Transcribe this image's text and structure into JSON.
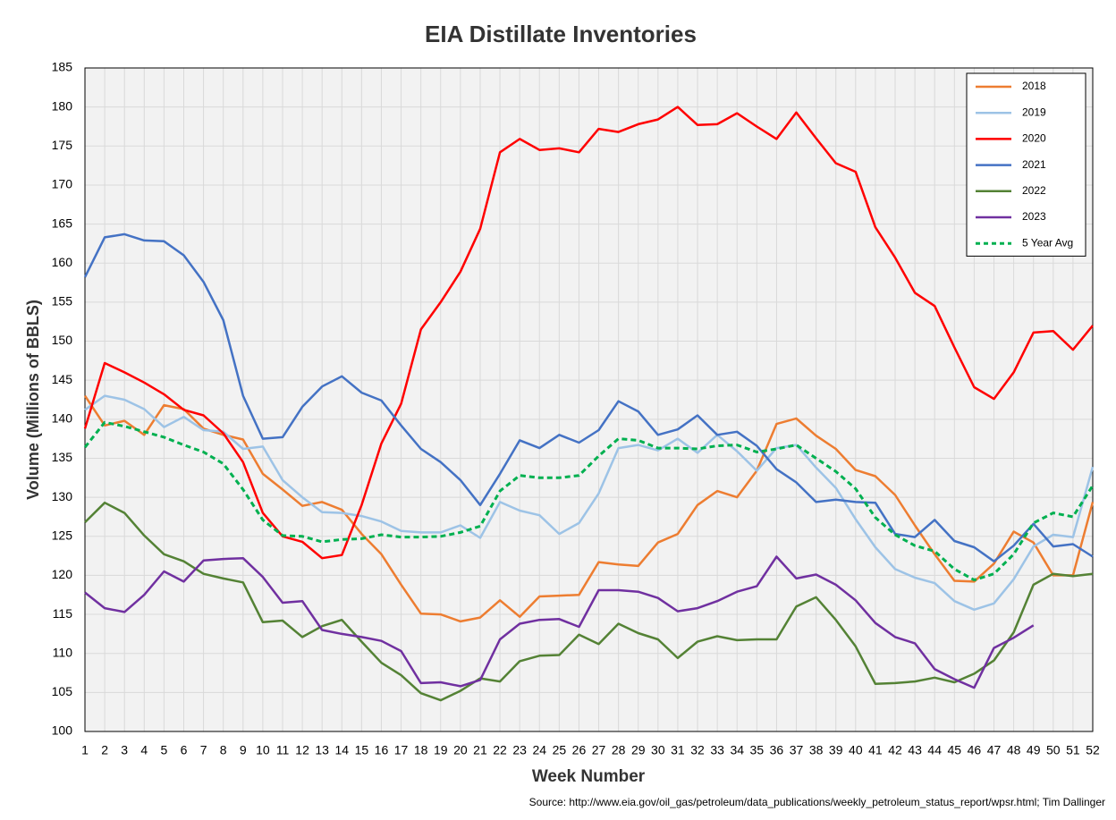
{
  "chart_data": {
    "type": "line",
    "title": "EIA Distillate Inventories",
    "x_label": "Week Number",
    "y_label": "Volume (Millions of BBLS)",
    "source": "Source: http://www.eia.gov/oil_gas/petroleum/data_publications/weekly_petroleum_status_report/wpsr.html; Tim Dallinger",
    "x": [
      1,
      2,
      3,
      4,
      5,
      6,
      7,
      8,
      9,
      10,
      11,
      12,
      13,
      14,
      15,
      16,
      17,
      18,
      19,
      20,
      21,
      22,
      23,
      24,
      25,
      26,
      27,
      28,
      29,
      30,
      31,
      32,
      33,
      34,
      35,
      36,
      37,
      38,
      39,
      40,
      41,
      42,
      43,
      44,
      45,
      46,
      47,
      48,
      49,
      50,
      51,
      52
    ],
    "xlim": [
      1,
      52
    ],
    "xticks": [
      1,
      2,
      3,
      4,
      5,
      6,
      7,
      8,
      9,
      10,
      11,
      12,
      13,
      14,
      15,
      16,
      17,
      18,
      19,
      20,
      21,
      22,
      23,
      24,
      25,
      26,
      27,
      28,
      29,
      30,
      31,
      32,
      33,
      34,
      35,
      36,
      37,
      38,
      39,
      40,
      41,
      42,
      43,
      44,
      45,
      46,
      47,
      48,
      49,
      50,
      51,
      52
    ],
    "ylim": [
      100,
      185
    ],
    "yticks": [
      100,
      105,
      110,
      115,
      120,
      125,
      130,
      135,
      140,
      145,
      150,
      155,
      160,
      165,
      170,
      175,
      180,
      185
    ],
    "grid": true,
    "legend": "top-right",
    "series": [
      {
        "name": "2018",
        "color": "#ed7d31",
        "values": [
          143,
          139.2,
          139.8,
          138,
          141.8,
          141.3,
          138.8,
          138,
          137.4,
          133,
          131,
          128.9,
          129.4,
          128.4,
          125.3,
          122.7,
          118.8,
          115.1,
          115,
          114.1,
          114.6,
          116.8,
          114.7,
          117.3,
          117.4,
          117.5,
          121.7,
          121.4,
          121.2,
          124.2,
          125.3,
          129,
          130.8,
          130,
          133.4,
          139.4,
          140.1,
          137.9,
          136.2,
          133.5,
          132.7,
          130.3,
          126.4,
          122.7,
          119.3,
          119.2,
          121.5,
          125.6,
          124.2,
          120,
          120,
          129.4
        ]
      },
      {
        "name": "2019",
        "color": "#9dc3e6",
        "values": [
          141.2,
          143,
          142.5,
          141.3,
          139,
          140.3,
          138.6,
          138.4,
          136.2,
          136.5,
          132.2,
          130,
          128.1,
          128,
          127.6,
          126.9,
          125.7,
          125.5,
          125.5,
          126.4,
          124.8,
          129.4,
          128.3,
          127.7,
          125.3,
          126.7,
          130.5,
          136.3,
          136.7,
          136,
          137.5,
          135.7,
          138,
          135.9,
          133.4,
          136.3,
          136.7,
          133.8,
          131.2,
          127.2,
          123.6,
          120.8,
          119.7,
          119,
          116.7,
          115.6,
          116.4,
          119.5,
          123.7,
          125.2,
          124.9,
          133.9
        ]
      },
      {
        "name": "2020",
        "color": "#ff0000",
        "values": [
          138.8,
          147.2,
          146,
          144.7,
          143.2,
          141.2,
          140.5,
          138.2,
          134.5,
          128,
          125,
          124.3,
          122.2,
          122.6,
          129,
          136.9,
          142,
          151.5,
          155,
          158.9,
          164.4,
          174.2,
          175.9,
          174.5,
          174.7,
          174.2,
          177.2,
          176.8,
          177.8,
          178.4,
          180,
          177.7,
          177.8,
          179.2,
          177.5,
          175.9,
          179.3,
          176,
          172.8,
          171.7,
          164.6,
          160.7,
          156.2,
          154.5,
          149.2,
          144.1,
          142.6,
          146,
          151.1,
          151.3,
          148.9,
          152
        ]
      },
      {
        "name": "2021",
        "color": "#4472c4",
        "values": [
          158.2,
          163.3,
          163.7,
          162.9,
          162.8,
          161,
          157.6,
          152.7,
          143,
          137.5,
          137.7,
          141.6,
          144.2,
          145.5,
          143.4,
          142.4,
          139.2,
          136.2,
          134.5,
          132.2,
          129,
          133,
          137.3,
          136.3,
          138,
          137,
          138.6,
          142.3,
          141,
          138,
          138.7,
          140.5,
          138,
          138.4,
          136.6,
          133.6,
          131.9,
          129.4,
          129.7,
          129.4,
          129.3,
          125.3,
          124.9,
          127.1,
          124.4,
          123.6,
          121.8,
          123.8,
          126.6,
          123.7,
          124,
          122.4
        ]
      },
      {
        "name": "2022",
        "color": "#548235",
        "values": [
          126.8,
          129.3,
          128,
          125.1,
          122.7,
          121.8,
          120.2,
          119.6,
          119.1,
          114,
          114.2,
          112.1,
          113.5,
          114.3,
          111.5,
          108.8,
          107.2,
          104.9,
          104,
          105.2,
          106.8,
          106.4,
          109,
          109.7,
          109.8,
          112.4,
          111.2,
          113.8,
          112.6,
          111.8,
          109.4,
          111.5,
          112.2,
          111.7,
          111.8,
          111.8,
          116,
          117.2,
          114.3,
          110.9,
          106.1,
          106.2,
          106.4,
          106.9,
          106.3,
          107.4,
          109.1,
          112.7,
          118.8,
          120.2,
          119.9,
          120.2
        ]
      },
      {
        "name": "2023",
        "color": "#7030a0",
        "values": [
          117.8,
          115.8,
          115.3,
          117.5,
          120.5,
          119.2,
          121.9,
          122.1,
          122.2,
          119.8,
          116.5,
          116.7,
          113,
          112.5,
          112.1,
          111.6,
          110.3,
          106.2,
          106.3,
          105.8,
          106.6,
          111.8,
          113.8,
          114.3,
          114.4,
          113.4,
          118.1,
          118.1,
          117.9,
          117.1,
          115.4,
          115.8,
          116.7,
          117.9,
          118.6,
          122.4,
          119.6,
          120.1,
          118.8,
          116.8,
          113.9,
          112.1,
          111.3,
          108,
          106.7,
          105.6,
          110.7,
          112,
          113.6,
          null,
          null,
          null
        ]
      },
      {
        "name": "5 Year Avg",
        "color": "#00b050",
        "dashed": true,
        "values": [
          136.4,
          139.6,
          139.1,
          138.4,
          137.7,
          136.7,
          135.8,
          134.3,
          131,
          127.1,
          125.1,
          125,
          124.3,
          124.6,
          124.7,
          125.2,
          124.9,
          124.9,
          125,
          125.5,
          126.3,
          130.8,
          132.8,
          132.5,
          132.5,
          132.8,
          135.3,
          137.5,
          137.3,
          136.3,
          136.3,
          136.2,
          136.6,
          136.7,
          135.8,
          136.2,
          136.7,
          135,
          133.3,
          131.1,
          127.4,
          125.2,
          123.8,
          123.1,
          120.8,
          119.4,
          120.2,
          122.7,
          126.7,
          128,
          127.5,
          131.5
        ]
      }
    ]
  }
}
